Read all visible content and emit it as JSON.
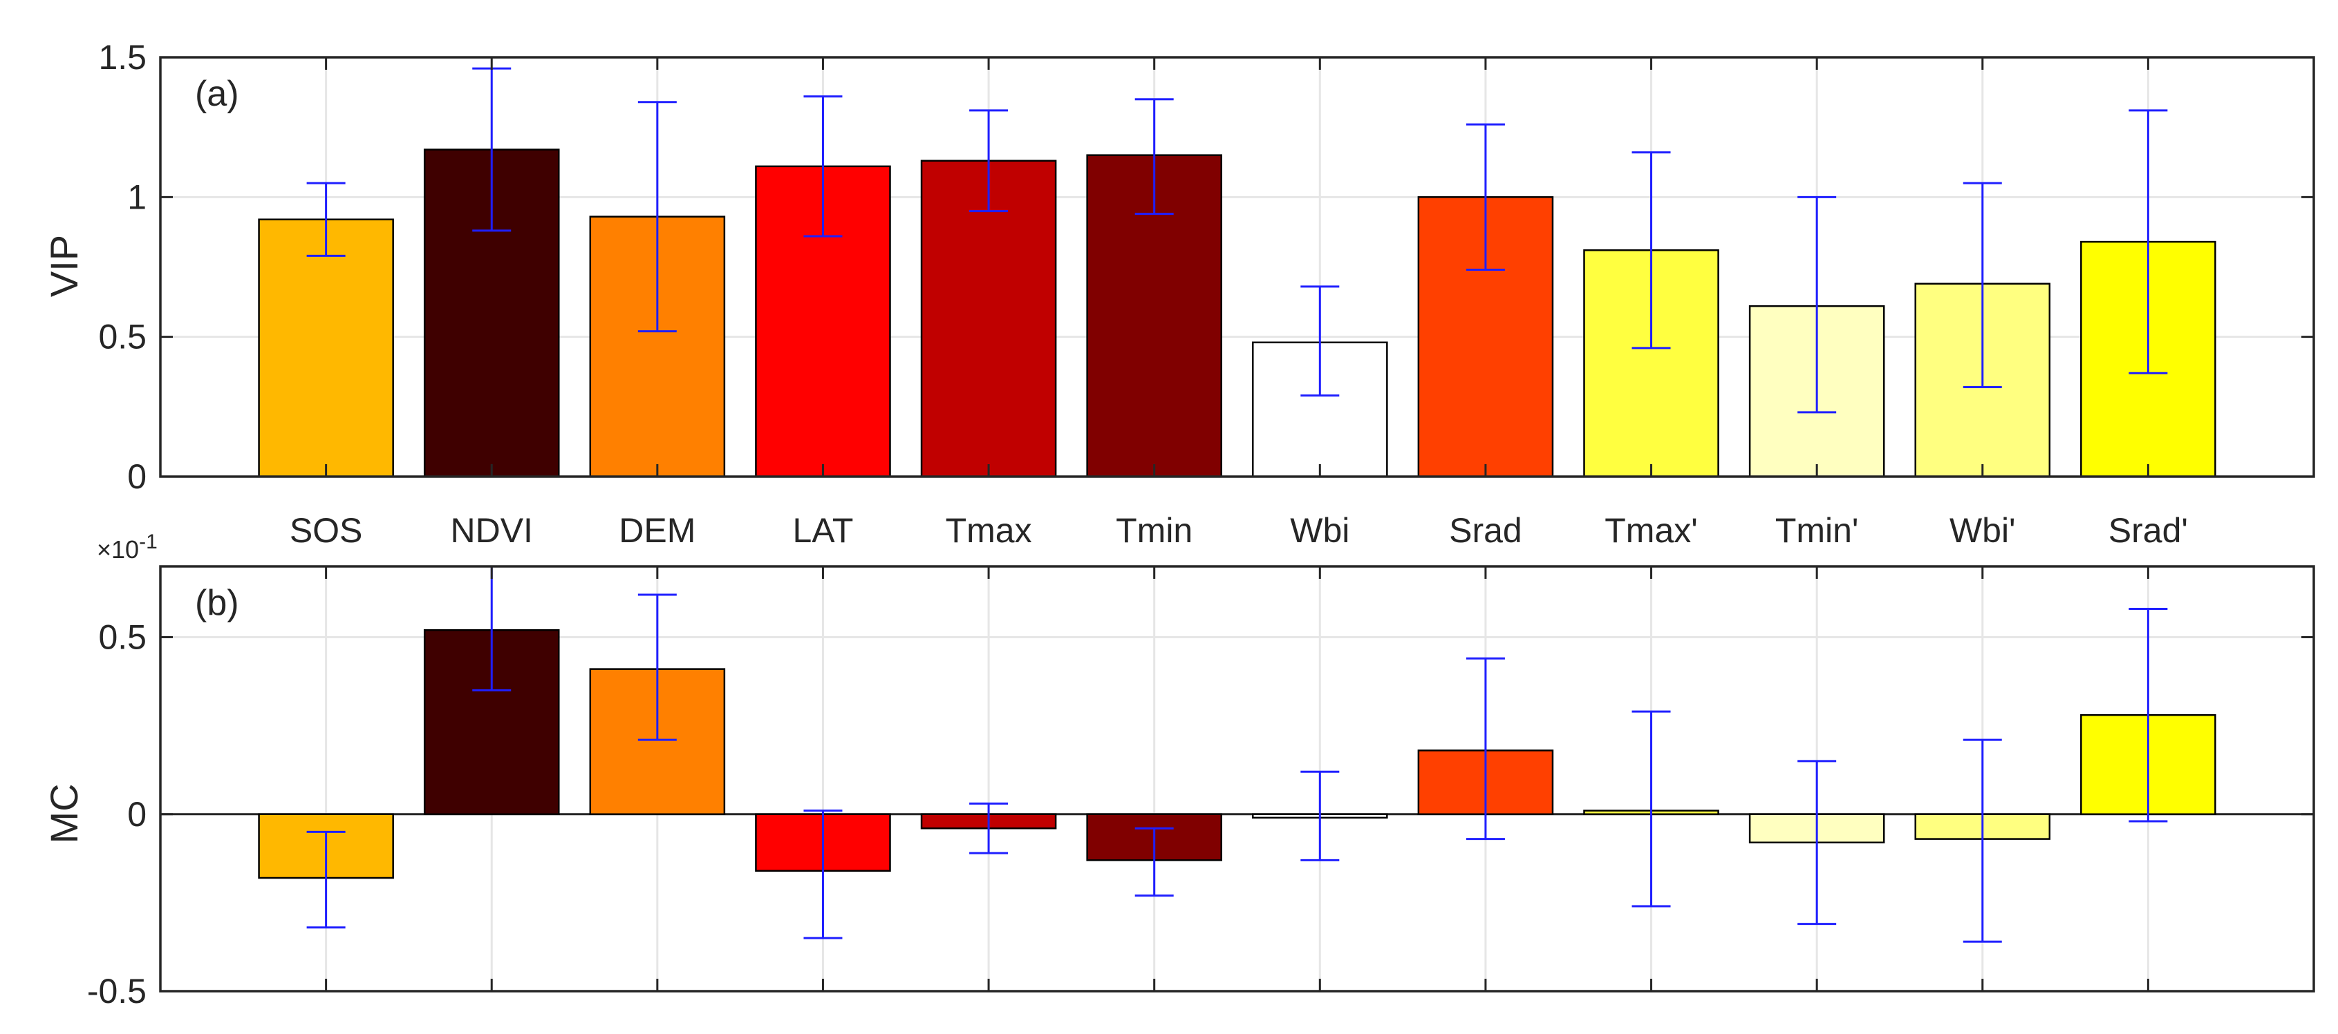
{
  "chart_data": [
    {
      "type": "bar",
      "panel_label": "(a)",
      "ylabel": "VIP",
      "ylim": [
        0,
        1.5
      ],
      "yticks": [
        {
          "value": 0,
          "label": "0"
        },
        {
          "value": 0.5,
          "label": "0.5"
        },
        {
          "value": 1,
          "label": "1"
        },
        {
          "value": 1.5,
          "label": "1.5"
        }
      ],
      "grid": true,
      "categories": [
        "SOS",
        "NDVI",
        "DEM",
        "LAT",
        "Tmax",
        "Tmin",
        "Wbi",
        "Srad",
        "Tmax'",
        "Tmin'",
        "Wbi'",
        "Srad'"
      ],
      "values": [
        0.92,
        1.17,
        0.93,
        1.11,
        1.13,
        1.15,
        0.48,
        1.0,
        0.81,
        0.61,
        0.69,
        0.84
      ],
      "error_low": [
        0.79,
        0.88,
        0.52,
        0.86,
        0.95,
        0.94,
        0.29,
        0.74,
        0.46,
        0.23,
        0.32,
        0.37
      ],
      "error_high": [
        1.05,
        1.46,
        1.34,
        1.36,
        1.31,
        1.35,
        0.68,
        1.26,
        1.16,
        1.0,
        1.05,
        1.31
      ],
      "colors": [
        "#FFB800",
        "#3F0000",
        "#FF8000",
        "#FF0000",
        "#C00000",
        "#800000",
        "#FFFFFF",
        "#FF4000",
        "#FFFF40",
        "#FFFFC0",
        "#FFFF80",
        "#FFFF00"
      ],
      "errorbar_color": "#1F1FFF"
    },
    {
      "type": "bar",
      "panel_label": "(b)",
      "ylabel": "MC",
      "scale_label": "×10",
      "scale_exponent": "-1",
      "ylim": [
        -0.5,
        0.7
      ],
      "yticks": [
        {
          "value": -0.5,
          "label": "-0.5"
        },
        {
          "value": 0,
          "label": "0"
        },
        {
          "value": 0.5,
          "label": "0.5"
        }
      ],
      "grid": true,
      "categories": [
        "SOS",
        "NDVI",
        "DEM",
        "LAT",
        "Tmax",
        "Tmin",
        "Wbi",
        "Srad",
        "Tmax'",
        "Tmin'",
        "Wbi'",
        "Srad'"
      ],
      "values": [
        -0.18,
        0.52,
        0.41,
        -0.16,
        -0.04,
        -0.13,
        -0.01,
        0.18,
        0.01,
        -0.08,
        -0.07,
        0.28
      ],
      "error_low": [
        -0.32,
        0.35,
        0.21,
        -0.35,
        -0.11,
        -0.23,
        -0.13,
        -0.07,
        -0.26,
        -0.31,
        -0.36,
        -0.02
      ],
      "error_high": [
        -0.05,
        0.7,
        0.62,
        0.01,
        0.03,
        -0.04,
        0.12,
        0.44,
        0.29,
        0.15,
        0.21,
        0.58
      ],
      "colors": [
        "#FFB800",
        "#3F0000",
        "#FF8000",
        "#FF0000",
        "#C00000",
        "#800000",
        "#FFFFFF",
        "#FF4000",
        "#FFFF40",
        "#FFFFC0",
        "#FFFF80",
        "#FFFF00"
      ],
      "errorbar_color": "#1F1FFF"
    }
  ]
}
